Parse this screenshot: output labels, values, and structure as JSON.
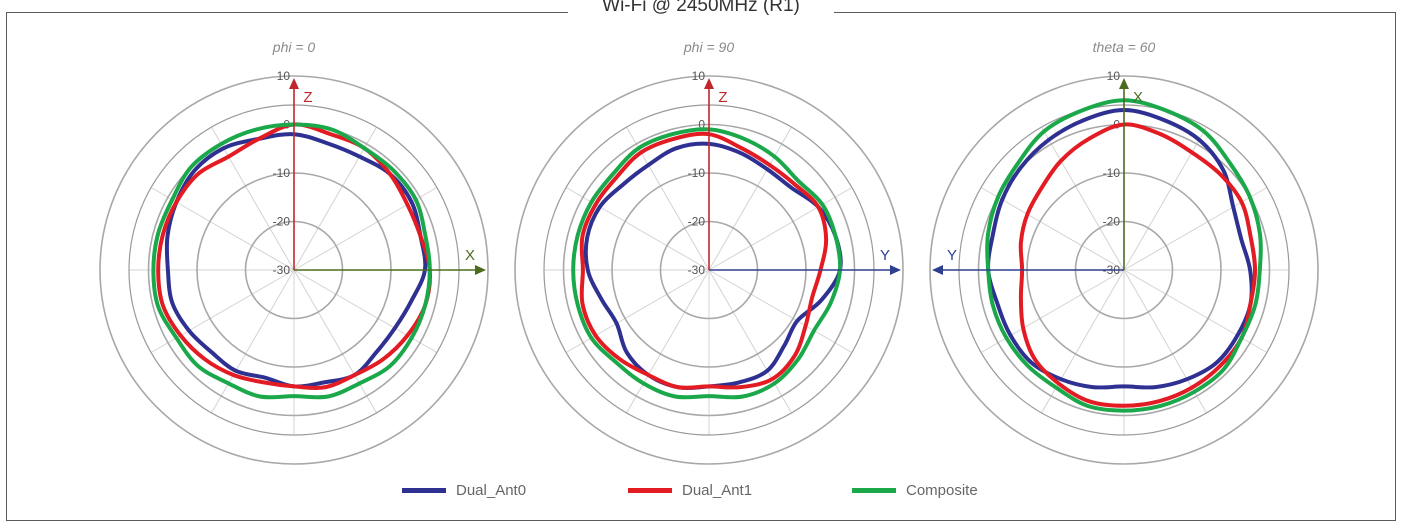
{
  "title": "Wi-Fi @ 2450MHz (R1)",
  "colors": {
    "Dual_Ant0": "#2e3192",
    "Dual_Ant1": "#e31b23",
    "Composite": "#1aa84a",
    "z_axis": "#c0272d",
    "x_axis": "#4d6b1f",
    "y_axis": "#2f3f8f"
  },
  "chart_data": [
    {
      "type": "polar-line",
      "subtitle": "phi = 0",
      "radial_range": [
        -30,
        10
      ],
      "radial_ticks": [
        "10",
        "0",
        "-10",
        "-20",
        "-30"
      ],
      "axes": [
        {
          "label": "Z",
          "direction": "up"
        },
        {
          "label": "X",
          "direction": "right"
        }
      ],
      "angles_deg": [
        0,
        15,
        30,
        45,
        60,
        75,
        90,
        105,
        120,
        135,
        150,
        165,
        180,
        195,
        210,
        225,
        240,
        255,
        270,
        285,
        300,
        315,
        330,
        345
      ],
      "series": [
        {
          "name": "Dual_Ant0",
          "values": [
            -2,
            -3,
            -3,
            -2,
            -2,
            -3,
            -3,
            -5,
            -6,
            -6,
            -5,
            -6,
            -6,
            -7,
            -6,
            -6,
            -5,
            -4,
            -4,
            -3,
            -2,
            -1,
            -1,
            -2
          ]
        },
        {
          "name": "Dual_Ant1",
          "values": [
            0,
            -1,
            -1,
            -2,
            -3,
            -3,
            -2,
            -2,
            -3,
            -4,
            -5,
            -5,
            -6,
            -6,
            -5,
            -4,
            -3,
            -2,
            -2,
            -2,
            -2,
            -2,
            -3,
            -2
          ]
        },
        {
          "name": "Composite",
          "values": [
            0,
            0,
            -1,
            -1,
            -1,
            -2,
            -2,
            -2,
            -2,
            -2,
            -3,
            -3,
            -4,
            -3,
            -3,
            -2,
            -2,
            -1,
            -1,
            -1,
            -1,
            0,
            0,
            0
          ]
        }
      ]
    },
    {
      "type": "polar-line",
      "subtitle": "phi = 90",
      "radial_range": [
        -30,
        10
      ],
      "radial_ticks": [
        "10",
        "0",
        "-10",
        "-20",
        "-30"
      ],
      "axes": [
        {
          "label": "Z",
          "direction": "up"
        },
        {
          "label": "Y",
          "direction": "right"
        }
      ],
      "angles_deg": [
        0,
        15,
        30,
        45,
        60,
        75,
        90,
        105,
        120,
        135,
        150,
        165,
        180,
        195,
        210,
        225,
        240,
        255,
        270,
        285,
        300,
        315,
        330,
        345
      ],
      "series": [
        {
          "name": "Dual_Ant0",
          "values": [
            -4,
            -5,
            -6,
            -6,
            -4,
            -3,
            -3,
            -6,
            -9,
            -8,
            -6,
            -6,
            -6,
            -5,
            -5,
            -6,
            -8,
            -7,
            -5,
            -4,
            -4,
            -5,
            -5,
            -4
          ]
        },
        {
          "name": "Dual_Ant1",
          "values": [
            -2,
            -4,
            -5,
            -5,
            -4,
            -5,
            -7,
            -8,
            -7,
            -5,
            -4,
            -5,
            -6,
            -5,
            -5,
            -4,
            -3,
            -3,
            -4,
            -3,
            -3,
            -3,
            -2,
            -2
          ]
        },
        {
          "name": "Composite",
          "values": [
            -1,
            -2,
            -3,
            -4,
            -3,
            -3,
            -3,
            -4,
            -5,
            -4,
            -3,
            -3,
            -4,
            -3,
            -3,
            -3,
            -2,
            -2,
            -2,
            -2,
            -2,
            -2,
            -1,
            -1
          ]
        }
      ]
    },
    {
      "type": "polar-line",
      "subtitle": "theta = 60",
      "radial_range": [
        -30,
        10
      ],
      "radial_ticks": [
        "10",
        "0",
        "-10",
        "-20",
        "-30"
      ],
      "axes": [
        {
          "label": "X",
          "direction": "up"
        },
        {
          "label": "Y",
          "direction": "left"
        }
      ],
      "angles_deg": [
        0,
        15,
        30,
        45,
        60,
        75,
        90,
        105,
        120,
        135,
        150,
        165,
        180,
        195,
        210,
        225,
        240,
        255,
        270,
        285,
        300,
        315,
        330,
        345
      ],
      "series": [
        {
          "name": "Dual_Ant0",
          "values": [
            3,
            2,
            1,
            -1,
            -4,
            -5,
            -4,
            -3,
            -3,
            -3,
            -4,
            -5,
            -6,
            -5,
            -4,
            -3,
            -3,
            -3,
            -2,
            -2,
            -1,
            0,
            1,
            2
          ]
        },
        {
          "name": "Dual_Ant1",
          "values": [
            0,
            -1,
            -2,
            -2,
            -2,
            -3,
            -3,
            -3,
            -2,
            -2,
            -2,
            -2,
            -2,
            -2,
            -3,
            -4,
            -6,
            -8,
            -9,
            -8,
            -7,
            -6,
            -4,
            -2
          ]
        },
        {
          "name": "Composite",
          "values": [
            5,
            4,
            3,
            1,
            0,
            -1,
            -2,
            -2,
            -2,
            -1,
            -1,
            -1,
            -1,
            -1,
            -2,
            -2,
            -2,
            -2,
            -2,
            -1,
            0,
            1,
            3,
            4
          ]
        }
      ]
    }
  ],
  "legend": [
    {
      "name": "Dual_Ant0",
      "label": "Dual_Ant0"
    },
    {
      "name": "Dual_Ant1",
      "label": "Dual_Ant1"
    },
    {
      "name": "Composite",
      "label": "Composite"
    }
  ]
}
